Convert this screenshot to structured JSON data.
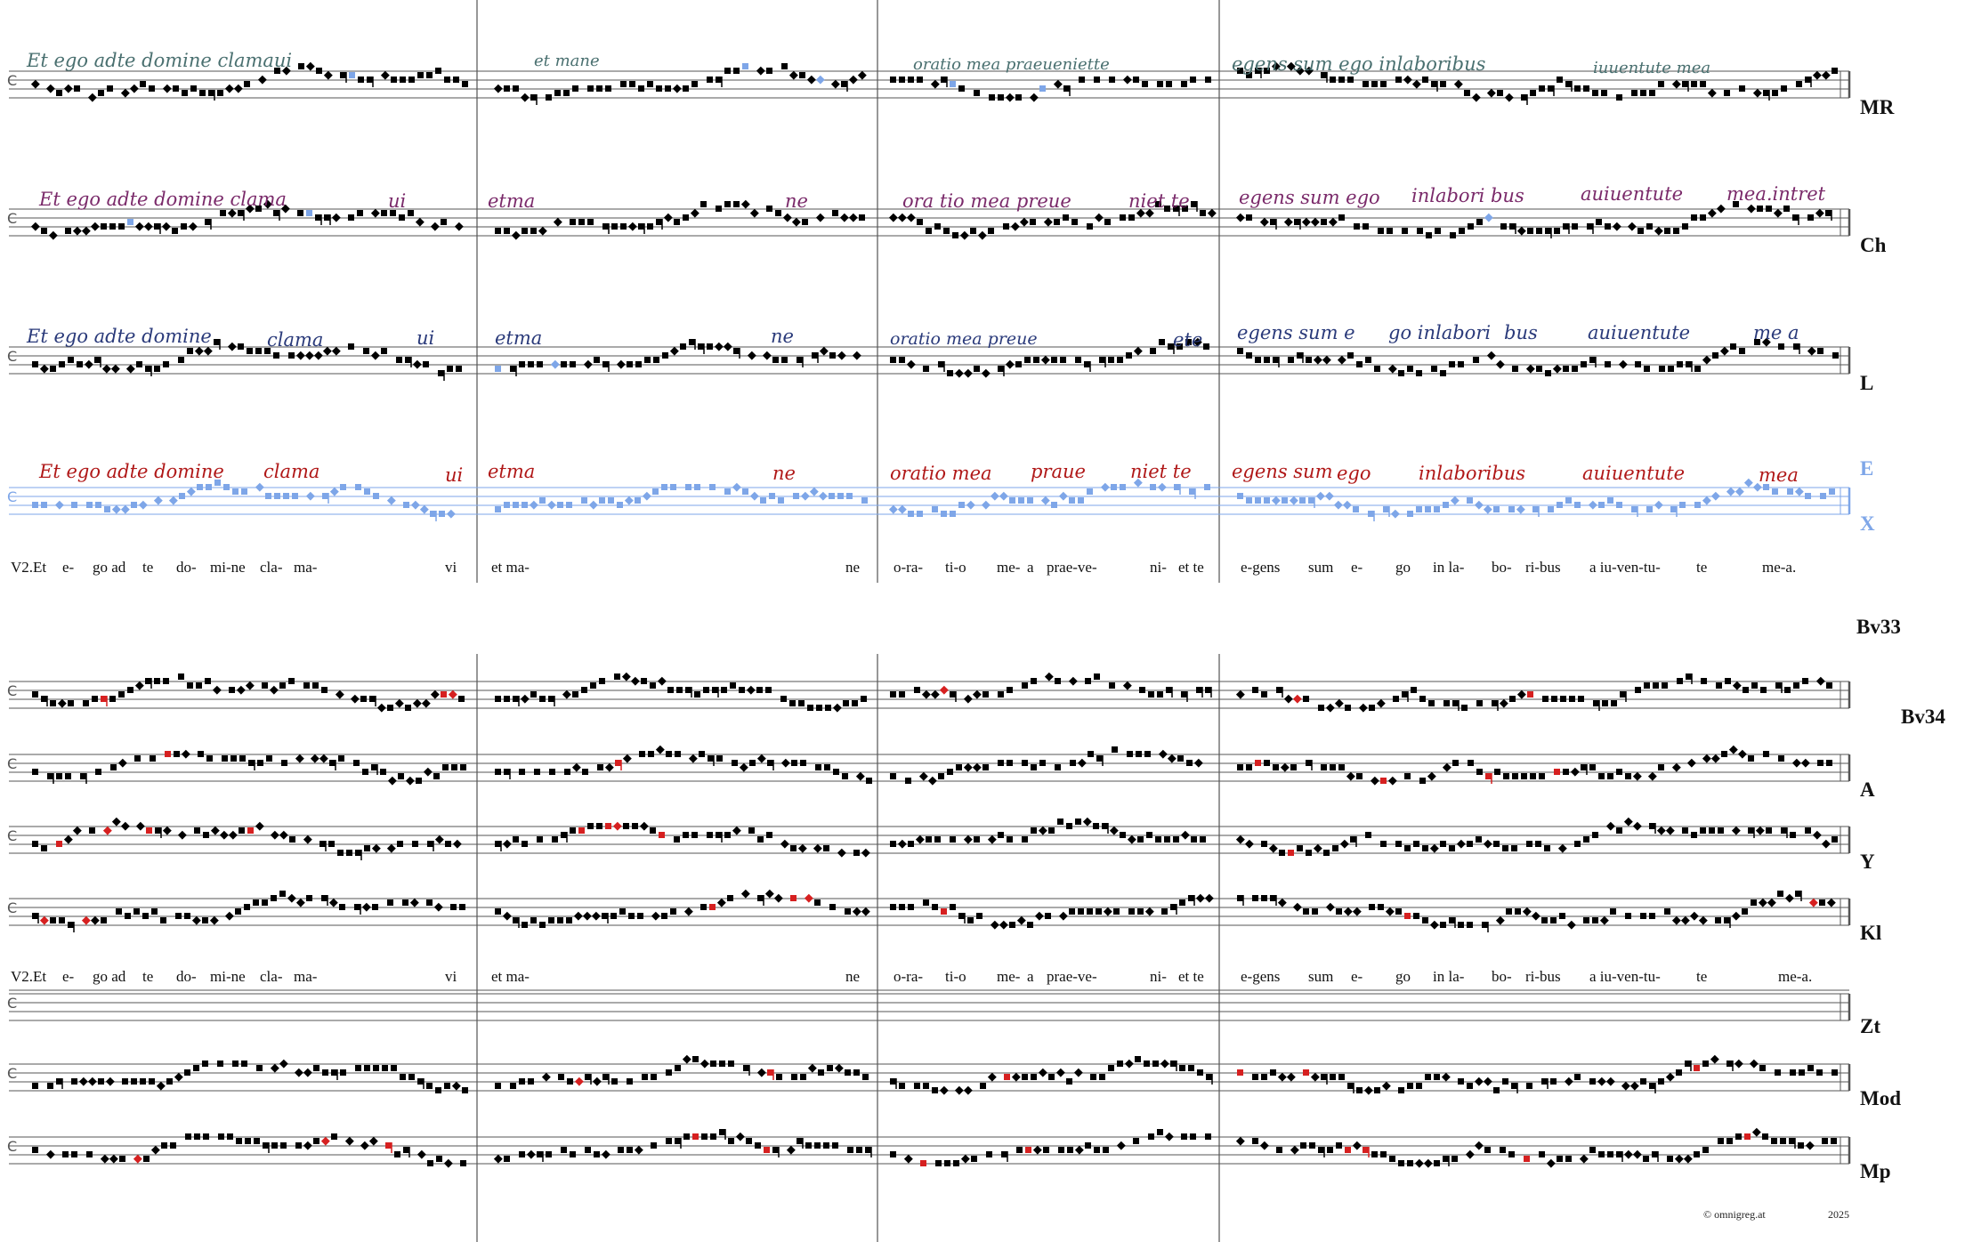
{
  "colors": {
    "ink": "#000000",
    "staff_line": "#555555",
    "barline": "#777777",
    "variant_red": "#d62020",
    "variant_blue": "#7ea6e8",
    "variant_green": "#5a8a5a",
    "mr_text": "#4a7070",
    "ch_text": "#7a2a6a",
    "l_text": "#2a3a7a",
    "e_text": "#b01818"
  },
  "upper_sigla": [
    "MR",
    "Ch",
    "L",
    "E",
    "X"
  ],
  "lower_sigla": [
    "Bv33",
    "Bv34",
    "A",
    "Y",
    "Kl",
    "Zt",
    "Mod",
    "Mp"
  ],
  "manuscript_text": {
    "mr": [
      "Et ego adte domine clamaui",
      "et mane",
      "oratio mea praeueniette",
      "egens sum ego inlaboribus",
      "iuuentute mea"
    ],
    "ch": [
      "Et ego adte domine clama",
      "ui",
      "etma",
      "ne",
      "ora tio mea preue",
      "niet te",
      "egens sum ego",
      "inlabori bus",
      "auiuentute",
      "mea.intret"
    ],
    "l": [
      "Et ego adte domine",
      "clama",
      "ui",
      "etma",
      "ne",
      "oratio mea preue",
      "ete",
      "egens sum e",
      "go inlabori",
      "bus",
      "auiuentute",
      "me a"
    ],
    "e": [
      "Et ego adte domine",
      "clama",
      "ui",
      "etma",
      "ne",
      "oratio mea",
      "praue",
      "niet te",
      "egens sum",
      "ego",
      "inlaboribus",
      "auiuentute",
      "mea"
    ]
  },
  "lyrics_upper": [
    "V2.Et",
    "e-",
    "go ad",
    "te",
    "do-",
    "mi-ne",
    "cla-",
    "ma-",
    "vi",
    "et ma-",
    "ne",
    "o-ra-",
    "ti-o",
    "me-",
    "a",
    "prae-ve-",
    "ni-",
    "et te",
    "e-gens",
    "sum",
    "e-",
    "go",
    "in la-",
    "bo-",
    "ri-bus",
    "a iu-ven-tu-",
    "te",
    "me-a."
  ],
  "lyrics_lower": [
    "V2.Et",
    "e-",
    "go ad",
    "te",
    "do-",
    "mi-ne",
    "cla-",
    "ma-",
    "vi",
    "et ma-",
    "ne",
    "o-ra-",
    "ti-o",
    "me-",
    "a",
    "prae-ve-",
    "ni-",
    "et te",
    "e-gens",
    "sum",
    "e-",
    "go",
    "in la-",
    "bo-",
    "ri-bus",
    "a iu-ven-tu-",
    "te",
    "me-a."
  ],
  "copyright": "©  omnigreg.at",
  "year": "2025"
}
